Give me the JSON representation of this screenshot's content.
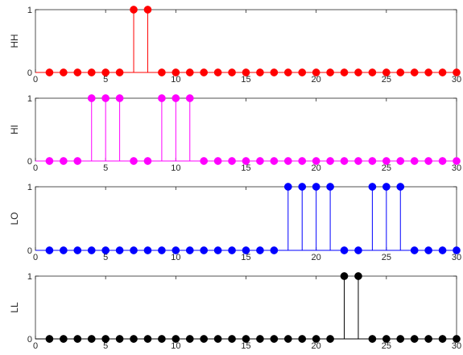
{
  "chart_data": [
    {
      "type": "stem",
      "ylabel": "HH",
      "color": "#ff0000",
      "x": [
        1,
        2,
        3,
        4,
        5,
        6,
        7,
        8,
        9,
        10,
        11,
        12,
        13,
        14,
        15,
        16,
        17,
        18,
        19,
        20,
        21,
        22,
        23,
        24,
        25,
        26,
        27,
        28,
        29,
        30
      ],
      "values": [
        0,
        0,
        0,
        0,
        0,
        0,
        1,
        1,
        0,
        0,
        0,
        0,
        0,
        0,
        0,
        0,
        0,
        0,
        0,
        0,
        0,
        0,
        0,
        0,
        0,
        0,
        0,
        0,
        0,
        0
      ],
      "xlim": [
        0,
        30
      ],
      "ylim": [
        0,
        1
      ],
      "xticks": [
        "0",
        "5",
        "10",
        "15",
        "20",
        "25",
        "30"
      ],
      "yticks": [
        "0",
        "1"
      ],
      "grid": false,
      "box": true
    },
    {
      "type": "stem",
      "ylabel": "HI",
      "color": "#ff00ff",
      "x": [
        1,
        2,
        3,
        4,
        5,
        6,
        7,
        8,
        9,
        10,
        11,
        12,
        13,
        14,
        15,
        16,
        17,
        18,
        19,
        20,
        21,
        22,
        23,
        24,
        25,
        26,
        27,
        28,
        29,
        30
      ],
      "values": [
        0,
        0,
        0,
        1,
        1,
        1,
        0,
        0,
        1,
        1,
        1,
        0,
        0,
        0,
        0,
        0,
        0,
        0,
        0,
        0,
        0,
        0,
        0,
        0,
        0,
        0,
        0,
        0,
        0,
        0
      ],
      "xlim": [
        0,
        30
      ],
      "ylim": [
        0,
        1
      ],
      "xticks": [
        "0",
        "5",
        "10",
        "15",
        "20",
        "25",
        "30"
      ],
      "yticks": [
        "0",
        "1"
      ],
      "grid": false,
      "box": true
    },
    {
      "type": "stem",
      "ylabel": "LO",
      "color": "#0000ff",
      "x": [
        1,
        2,
        3,
        4,
        5,
        6,
        7,
        8,
        9,
        10,
        11,
        12,
        13,
        14,
        15,
        16,
        17,
        18,
        19,
        20,
        21,
        22,
        23,
        24,
        25,
        26,
        27,
        28,
        29,
        30
      ],
      "values": [
        0,
        0,
        0,
        0,
        0,
        0,
        0,
        0,
        0,
        0,
        0,
        0,
        0,
        0,
        0,
        0,
        0,
        1,
        1,
        1,
        1,
        0,
        0,
        1,
        1,
        1,
        0,
        0,
        0,
        0
      ],
      "xlim": [
        0,
        30
      ],
      "ylim": [
        0,
        1
      ],
      "xticks": [
        "0",
        "5",
        "10",
        "15",
        "20",
        "25",
        "30"
      ],
      "yticks": [
        "0",
        "1"
      ],
      "grid": false,
      "box": true
    },
    {
      "type": "stem",
      "ylabel": "LL",
      "color": "#000000",
      "x": [
        1,
        2,
        3,
        4,
        5,
        6,
        7,
        8,
        9,
        10,
        11,
        12,
        13,
        14,
        15,
        16,
        17,
        18,
        19,
        20,
        21,
        22,
        23,
        24,
        25,
        26,
        27,
        28,
        29,
        30
      ],
      "values": [
        0,
        0,
        0,
        0,
        0,
        0,
        0,
        0,
        0,
        0,
        0,
        0,
        0,
        0,
        0,
        0,
        0,
        0,
        0,
        0,
        0,
        1,
        1,
        0,
        0,
        0,
        0,
        0,
        0,
        0
      ],
      "xlim": [
        0,
        30
      ],
      "ylim": [
        0,
        1
      ],
      "xticks": [
        "0",
        "5",
        "10",
        "15",
        "20",
        "25",
        "30"
      ],
      "yticks": [
        "0",
        "1"
      ],
      "grid": false,
      "box": true
    }
  ]
}
